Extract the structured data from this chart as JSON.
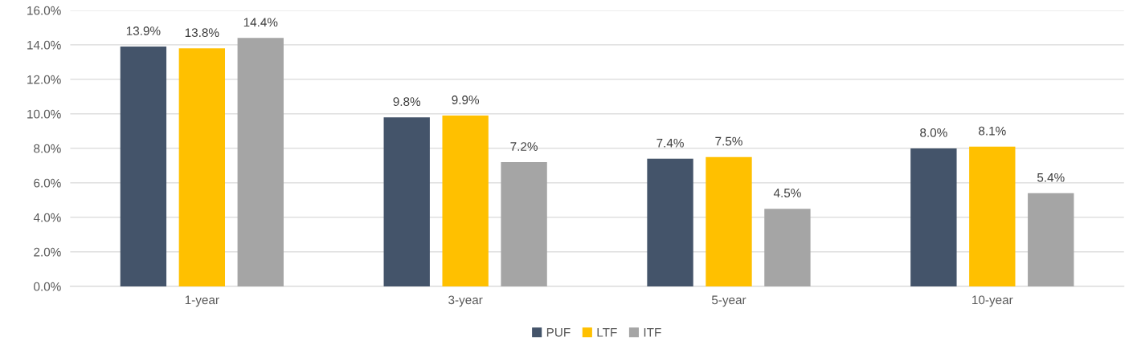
{
  "chart_data": {
    "type": "bar",
    "categories": [
      "1-year",
      "3-year",
      "5-year",
      "10-year"
    ],
    "series": [
      {
        "name": "PUF",
        "color": "#44546a",
        "values": [
          13.9,
          9.8,
          7.4,
          8.0
        ],
        "value_labels": [
          "13.9%",
          "9.8%",
          "7.4%",
          "8.0%"
        ]
      },
      {
        "name": "LTF",
        "color": "#ffc000",
        "values": [
          13.8,
          9.9,
          7.5,
          8.1
        ],
        "value_labels": [
          "13.8%",
          "9.9%",
          "7.5%",
          "8.1%"
        ]
      },
      {
        "name": "ITF",
        "color": "#a5a5a5",
        "values": [
          14.4,
          7.2,
          4.5,
          5.4
        ],
        "value_labels": [
          "14.4%",
          "7.2%",
          "4.5%",
          "5.4%"
        ]
      }
    ],
    "ylim": [
      0,
      16
    ],
    "yticks": [
      {
        "value": 0,
        "label": "0.0%"
      },
      {
        "value": 2,
        "label": "2.0%"
      },
      {
        "value": 4,
        "label": "4.0%"
      },
      {
        "value": 6,
        "label": "6.0%"
      },
      {
        "value": 8,
        "label": "8.0%"
      },
      {
        "value": 10,
        "label": "10.0%"
      },
      {
        "value": 12,
        "label": "12.0%"
      },
      {
        "value": 14,
        "label": "14.0%"
      },
      {
        "value": 16,
        "label": "16.0%"
      }
    ],
    "grid": "y",
    "legend": "bottom"
  }
}
